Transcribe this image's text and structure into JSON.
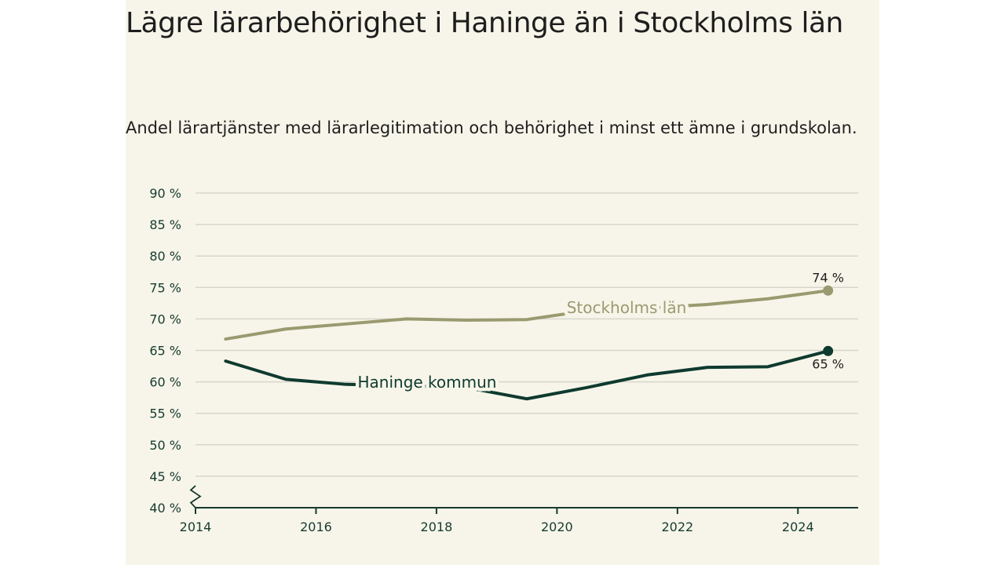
{
  "title": "Lägre lärarbehörighet i Haninge än i Stockholms län",
  "subtitle": "Andel lärartjänster med lärarlegitimation och behörighet i minst ett ämne i grundskolan.",
  "colors": {
    "background": "#f7f5e9",
    "stockholm": "#9a9a70",
    "haninge": "#0f3a2f",
    "grid": "#d7d6cc",
    "axis": "#173a30"
  },
  "chart_data": {
    "type": "line",
    "title": "Lägre lärarbehörighet i Haninge än i Stockholms län",
    "subtitle": "Andel lärartjänster med lärarlegitimation och behörighet i minst ett ämne i grundskolan.",
    "xlim": [
      2014,
      2025
    ],
    "ylim": [
      40,
      90
    ],
    "x_ticks": [
      2014,
      2016,
      2018,
      2020,
      2022,
      2024
    ],
    "x_tick_labels": [
      "2014",
      "2016",
      "2018",
      "2020",
      "2022",
      "2024"
    ],
    "y_ticks": [
      40,
      45,
      50,
      55,
      60,
      65,
      70,
      75,
      80,
      85,
      90
    ],
    "y_tick_labels": [
      "40 %",
      "45 %",
      "50 %",
      "55 %",
      "60 %",
      "65 %",
      "70 %",
      "75 %",
      "80 %",
      "85 %",
      "90 %"
    ],
    "grid": true,
    "axis_break": true,
    "legend": "inline labels",
    "series": [
      {
        "name": "Stockholms län",
        "key": "stockholm",
        "x": [
          2014.5,
          2015.5,
          2016.5,
          2017.5,
          2018.5,
          2019.5,
          2020.5,
          2021.5,
          2022.5,
          2023.5,
          2024.5
        ],
        "values": [
          66.8,
          68.4,
          69.2,
          70.0,
          69.8,
          69.9,
          71.3,
          71.7,
          72.3,
          73.2,
          74.5
        ],
        "end_label": "74 %"
      },
      {
        "name": "Haninge kommun",
        "key": "haninge",
        "x": [
          2014.5,
          2015.5,
          2016.5,
          2017.5,
          2018.5,
          2019.5,
          2020.5,
          2021.5,
          2022.5,
          2023.5,
          2024.5
        ],
        "values": [
          63.3,
          60.4,
          59.6,
          59.4,
          59.1,
          57.3,
          59.1,
          61.1,
          62.3,
          62.4,
          64.9
        ],
        "end_label": "65 %"
      }
    ]
  }
}
